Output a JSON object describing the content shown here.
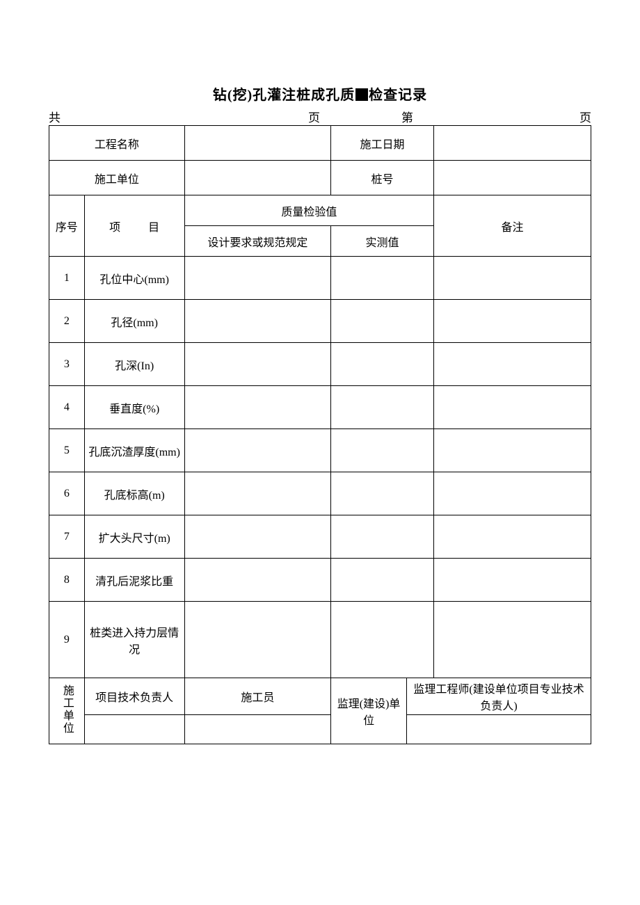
{
  "title": {
    "prefix": "钻(挖)孔灌注桩成孔质",
    "suffix": "检查记录"
  },
  "pager": {
    "total_label": "共",
    "total_unit": "页",
    "current_label": "第",
    "current_unit": "页"
  },
  "info": {
    "project_name_label": "工程名称",
    "project_name_value": "",
    "date_label": "施工日期",
    "date_value": "",
    "contractor_label": "施工单位",
    "contractor_value": "",
    "pile_no_label": "桩号",
    "pile_no_value": ""
  },
  "header": {
    "seq": "序号",
    "item_a": "项",
    "item_b": "目",
    "quality": "质量检验值",
    "design": "设计要求或规范规定",
    "measured": "实测值",
    "remark": "备注"
  },
  "rows": [
    {
      "no": "1",
      "item": "孔位中心(mm)",
      "item_class": "mixed",
      "design": "",
      "measured": "",
      "remark": ""
    },
    {
      "no": "2",
      "item": "孔径(mm)",
      "item_class": "mixed",
      "design": "",
      "measured": "",
      "remark": ""
    },
    {
      "no": "3",
      "item": "孔深(In)",
      "item_class": "mixed",
      "design": "",
      "measured": "",
      "remark": ""
    },
    {
      "no": "4",
      "item": "垂直度(%)",
      "item_class": "",
      "design": "",
      "measured": "",
      "remark": ""
    },
    {
      "no": "5",
      "item": "孔底沉渣厚度(mm)",
      "item_class": "mixed",
      "design": "",
      "measured": "",
      "remark": ""
    },
    {
      "no": "6",
      "item": "孔底标高(m)",
      "item_class": "mixed",
      "design": "",
      "measured": "",
      "remark": ""
    },
    {
      "no": "7",
      "item": "扩大头尺寸(m)",
      "item_class": "mixed",
      "design": "",
      "measured": "",
      "remark": ""
    },
    {
      "no": "8",
      "item": "清孔后泥浆比重",
      "item_class": "",
      "design": "",
      "measured": "",
      "remark": ""
    },
    {
      "no": "9",
      "item": "桩类进入持力层情况",
      "item_class": "",
      "design": "",
      "measured": "",
      "remark": "",
      "tall": true
    }
  ],
  "signoff": {
    "contractor_unit": "施工单位",
    "tech_lead": "项目技术负责人",
    "worker": "施工员",
    "supervise_unit": "监理(建设)单位",
    "engineer": "监理工程师(建设单位项目专业技术负责人)"
  },
  "style": {
    "col_widths_pct": [
      6.5,
      18.5,
      27,
      14,
      5,
      29
    ],
    "text_color": "#000000",
    "border_color": "#000000",
    "background": "#ffffff",
    "title_fontsize": 20,
    "body_fontsize": 16,
    "pager_fontsize": 17
  }
}
